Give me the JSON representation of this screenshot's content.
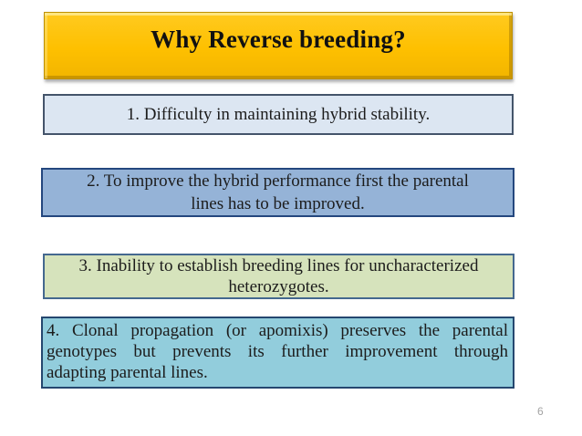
{
  "slide": {
    "title": "Why Reverse breeding?",
    "page_number": "6",
    "boxes": [
      {
        "name": "reason-1",
        "lines": [
          "1. Difficulty in maintaining hybrid stability."
        ]
      },
      {
        "name": "reason-2",
        "lines": [
          "2. To improve the hybrid performance first the parental",
          "lines has to be improved."
        ]
      },
      {
        "name": "reason-3",
        "lines": [
          "3. Inability to establish breeding lines for uncharacterized",
          "heterozygotes."
        ]
      },
      {
        "name": "reason-4",
        "lines": [
          "4. Clonal propagation (or apomixis) preserves the parental",
          "genotypes but prevents its further improvement through",
          "adapting parental lines."
        ]
      }
    ],
    "colors": {
      "title_fill": "#FFC000",
      "title_border": "#BF9000",
      "reason1_fill": "#DCE6F2",
      "reason1_border": "#44546A",
      "reason2_fill": "#95B3D7",
      "reason2_border": "#24477E",
      "reason3_fill": "#D6E3BC",
      "reason3_border": "#44688F",
      "reason4_fill": "#92CDDC",
      "reason4_border": "#25476F",
      "body_text": "#1C1C1C",
      "page_number": "#A3A3A3"
    }
  }
}
